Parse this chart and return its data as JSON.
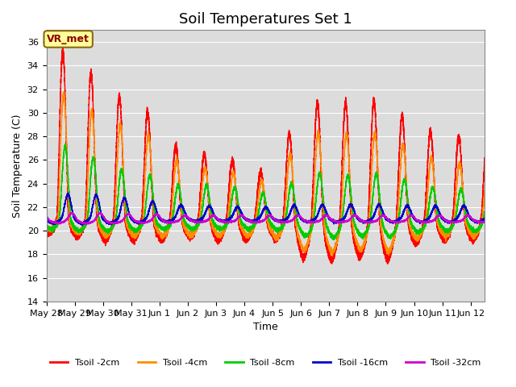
{
  "title": "Soil Temperatures Set 1",
  "xlabel": "Time",
  "ylabel": "Soil Temperature (C)",
  "ylim": [
    14,
    37
  ],
  "yticks": [
    14,
    16,
    18,
    20,
    22,
    24,
    26,
    28,
    30,
    32,
    34,
    36
  ],
  "colors": {
    "Tsoil -2cm": "#FF0000",
    "Tsoil -4cm": "#FF8C00",
    "Tsoil -8cm": "#00CC00",
    "Tsoil -16cm": "#0000CC",
    "Tsoil -32cm": "#CC00CC"
  },
  "bg_color": "#DCDCDC",
  "annotation_text": "VR_met",
  "annotation_bg": "#FFFF99",
  "annotation_border": "#8B6914",
  "tick_labels": [
    "May 28",
    "May 29",
    "May 30",
    "May 31",
    "Jun 1",
    "Jun 2",
    "Jun 3",
    "Jun 4",
    "Jun 5",
    "Jun 6",
    "Jun 7",
    "Jun 8",
    "Jun 9",
    "Jun 10",
    "Jun 11",
    "Jun 12"
  ]
}
